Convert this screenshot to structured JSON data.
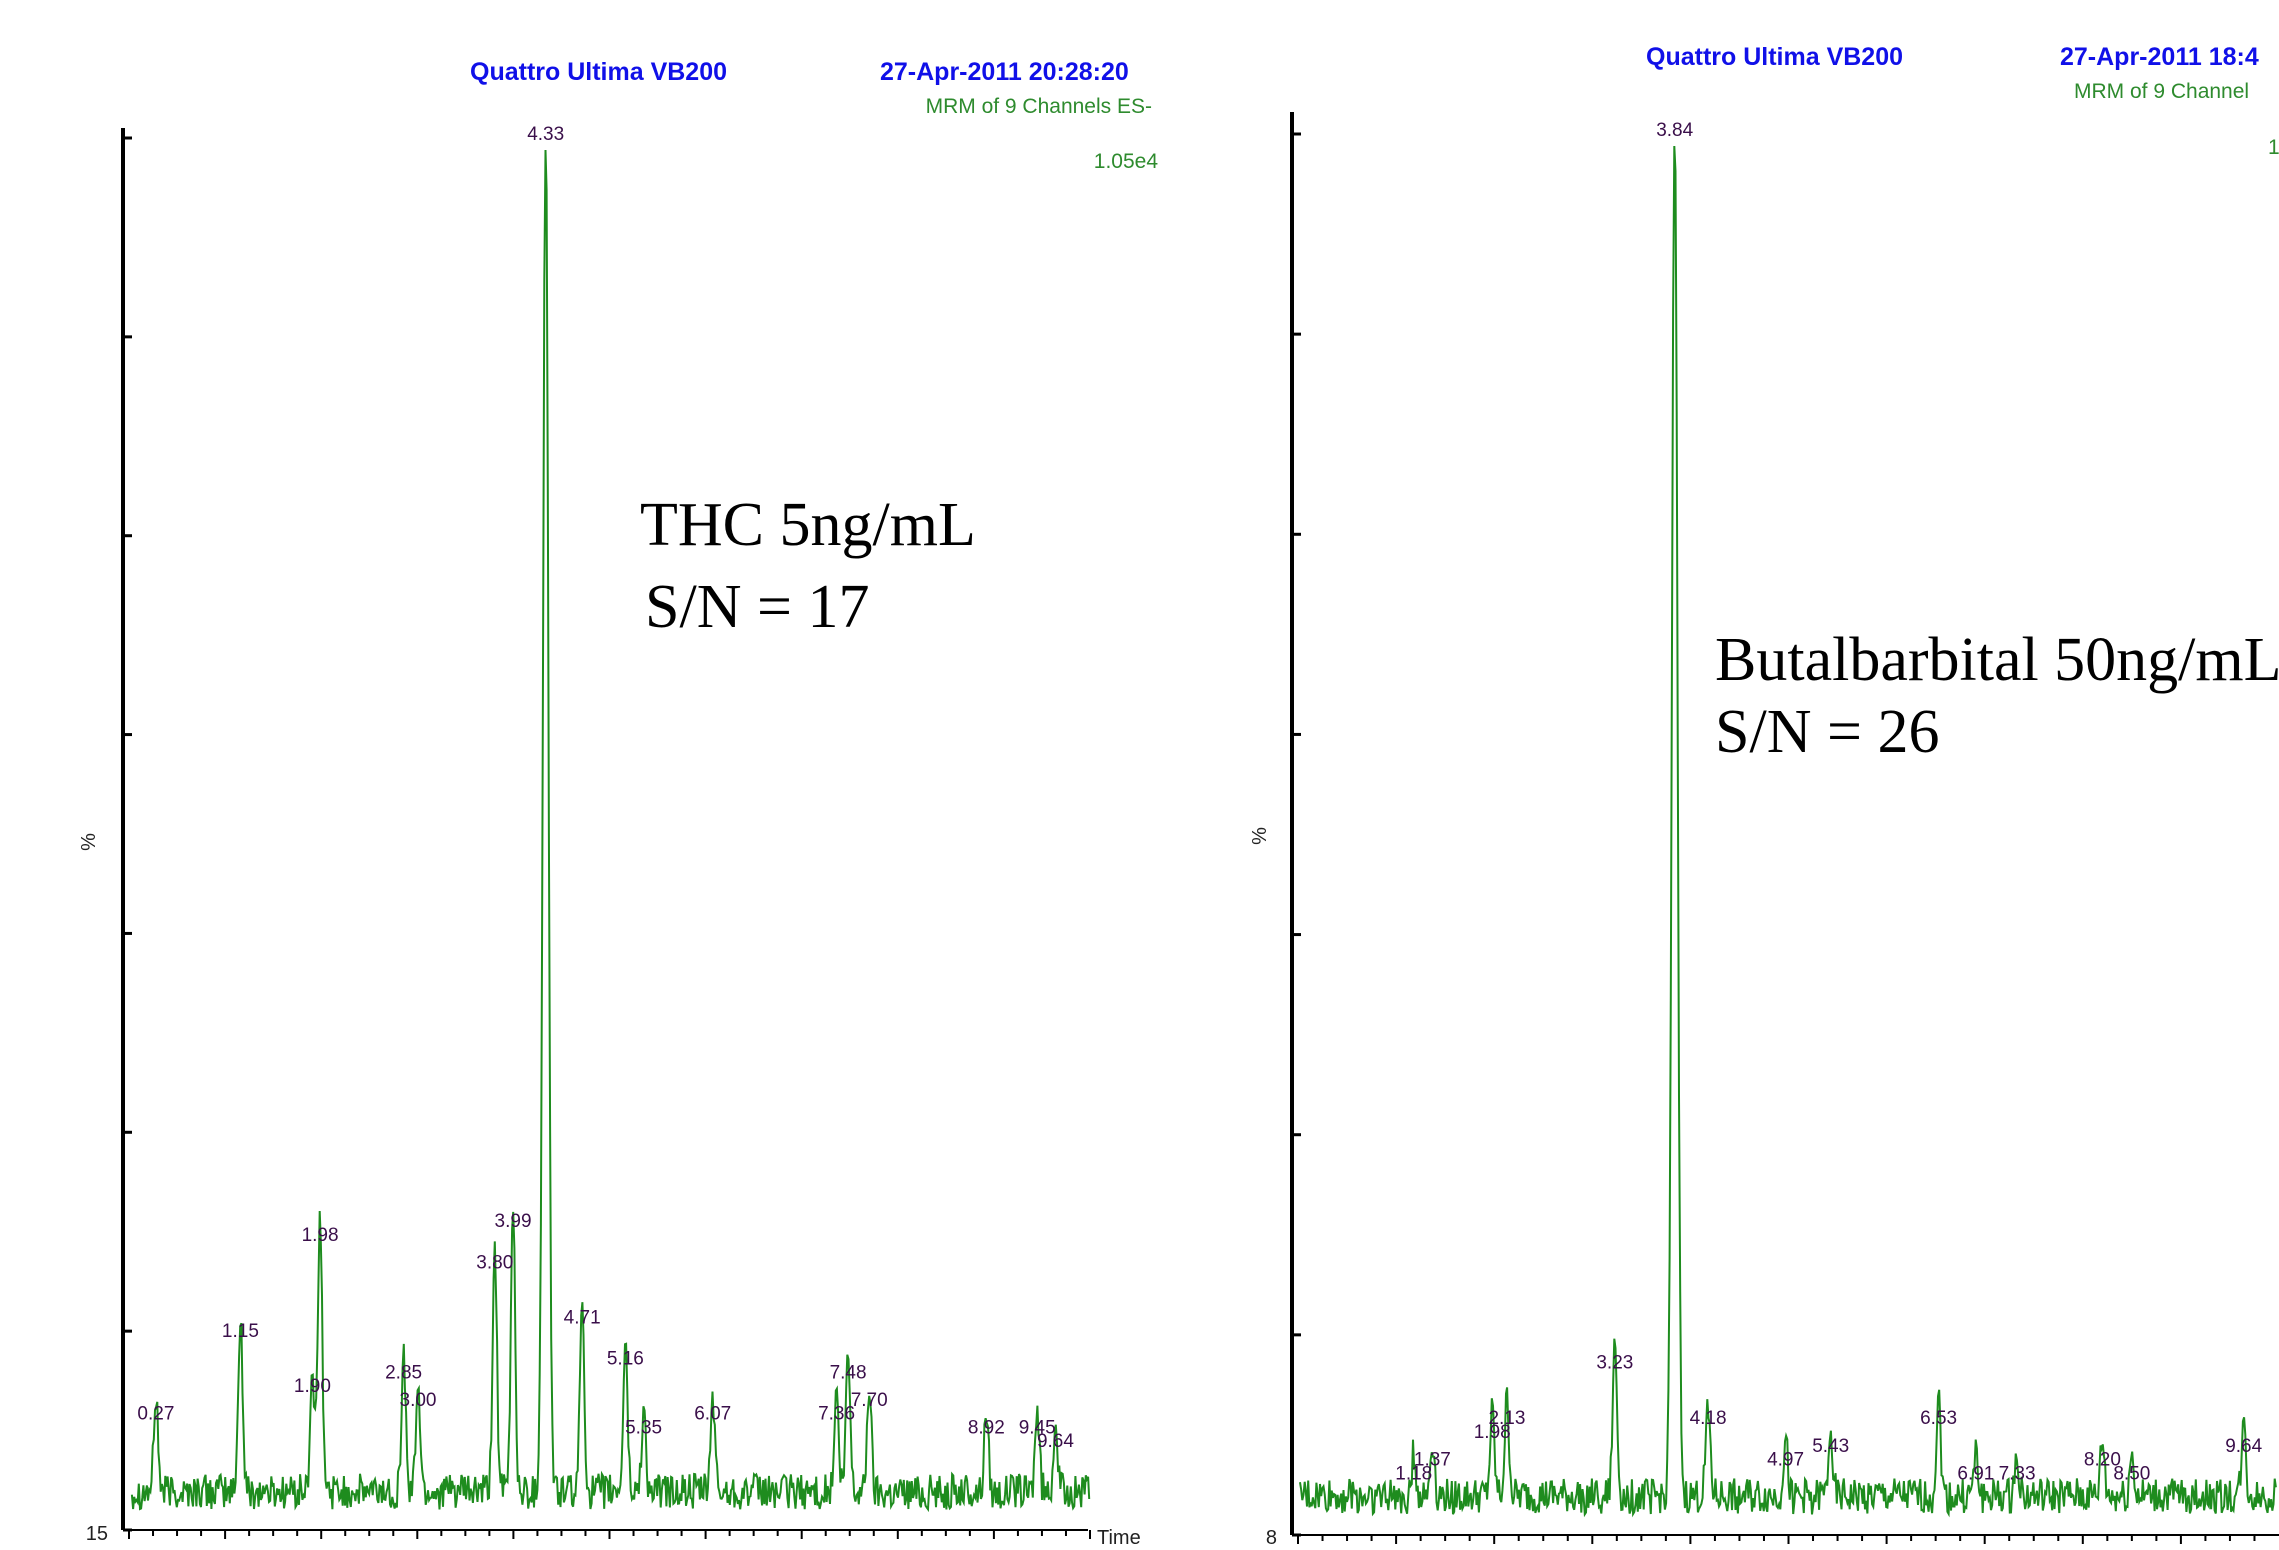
{
  "colors": {
    "header": "#1010e8",
    "trace": "#1e8c1e",
    "subheader": "#2e8b2e",
    "peak_label": "#3a0f4a"
  },
  "chart_data": [
    {
      "type": "line",
      "instrument": "Quattro Ultima VB200",
      "timestamp": "27-Apr-2011  20:28:20",
      "subtitle": "MRM of 9 Channels ES-",
      "intensity": "1.05e4",
      "ylabel": "%",
      "xlabel": "Time",
      "y_min_label": "15",
      "annotation": [
        "THC 5ng/mL",
        "S/N = 17"
      ],
      "xlim": [
        0,
        10
      ],
      "ylim": [
        0,
        100
      ],
      "peaks": [
        {
          "x": 0.27,
          "y": 7
        },
        {
          "x": 1.15,
          "y": 13
        },
        {
          "x": 1.9,
          "y": 9
        },
        {
          "x": 1.98,
          "y": 20
        },
        {
          "x": 2.85,
          "y": 10
        },
        {
          "x": 3.0,
          "y": 8
        },
        {
          "x": 3.8,
          "y": 18
        },
        {
          "x": 3.99,
          "y": 21
        },
        {
          "x": 4.33,
          "y": 100
        },
        {
          "x": 4.71,
          "y": 14
        },
        {
          "x": 5.16,
          "y": 11
        },
        {
          "x": 5.35,
          "y": 6
        },
        {
          "x": 6.07,
          "y": 7
        },
        {
          "x": 7.36,
          "y": 7
        },
        {
          "x": 7.48,
          "y": 10
        },
        {
          "x": 7.7,
          "y": 8
        },
        {
          "x": 8.92,
          "y": 6
        },
        {
          "x": 9.45,
          "y": 6
        },
        {
          "x": 9.64,
          "y": 5
        }
      ],
      "labels": [
        "0.27",
        "1.15",
        "1.90",
        "1.98",
        "2.85",
        "3.00",
        "3.80",
        "3.99",
        "4.33",
        "4.71",
        "5.16",
        "5.35",
        "6.07",
        "7.36",
        "7.48",
        "7.70",
        "8.92",
        "9.45",
        "9.64"
      ]
    },
    {
      "type": "line",
      "instrument": "Quattro Ultima VB200",
      "timestamp": "27-Apr-2011  18:4",
      "subtitle": "MRM of 9 Channel",
      "intensity": "1",
      "ylabel": "%",
      "xlabel": "",
      "y_min_label": "8",
      "annotation": [
        "Butalbarbital 50ng/mL",
        "S/N = 26"
      ],
      "xlim": [
        0,
        10
      ],
      "ylim": [
        0,
        100
      ],
      "peaks": [
        {
          "x": 1.18,
          "y": 3
        },
        {
          "x": 1.37,
          "y": 4
        },
        {
          "x": 1.98,
          "y": 6
        },
        {
          "x": 2.13,
          "y": 7
        },
        {
          "x": 3.23,
          "y": 11
        },
        {
          "x": 3.84,
          "y": 100
        },
        {
          "x": 4.18,
          "y": 7
        },
        {
          "x": 4.97,
          "y": 4
        },
        {
          "x": 5.43,
          "y": 5
        },
        {
          "x": 6.53,
          "y": 7
        },
        {
          "x": 6.91,
          "y": 3
        },
        {
          "x": 7.33,
          "y": 3
        },
        {
          "x": 8.2,
          "y": 4
        },
        {
          "x": 8.5,
          "y": 3
        },
        {
          "x": 9.64,
          "y": 5
        }
      ],
      "labels": [
        "1.18",
        "1.37",
        "1.98",
        "2.13",
        "3.23",
        "3.84",
        "4.18",
        "4.97",
        "5.43",
        "6.53",
        "6.91",
        "7.33",
        "8.20",
        "8.50",
        "9.64"
      ]
    }
  ]
}
